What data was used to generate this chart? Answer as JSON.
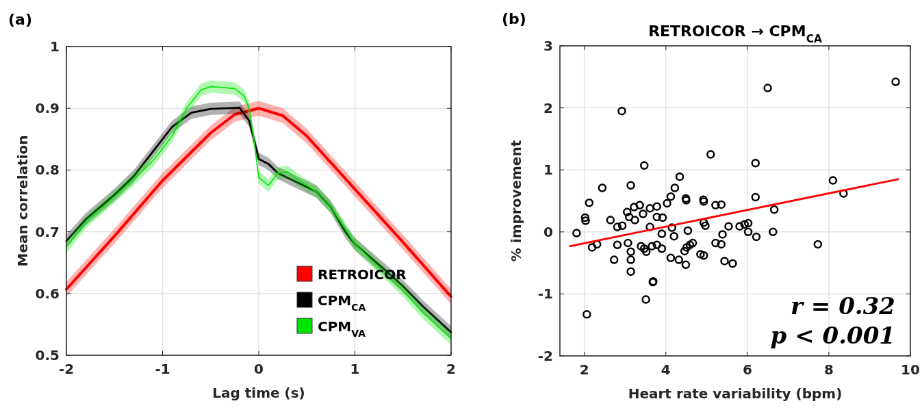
{
  "chart_data": [
    {
      "type": "line",
      "xlabel": "Lag time (s)",
      "ylabel": "Mean correlation",
      "annotations": [
        "(a)"
      ],
      "xlim": [
        -2,
        2
      ],
      "ylim": [
        0.5,
        1
      ],
      "xticks": [
        -2,
        -1,
        0,
        1,
        2
      ],
      "yticks": [
        0.5,
        0.6,
        0.7,
        0.8,
        0.9,
        1
      ],
      "grid": true,
      "legend": "bottom right",
      "line_style": "solid",
      "series": [
        {
          "name": "RETROICOR",
          "color": "#ff0000",
          "x": [
            -2,
            -1.5,
            -1,
            -0.5,
            -0.25,
            0,
            0.25,
            0.5,
            1,
            1.5,
            2
          ],
          "values": [
            0.607,
            0.693,
            0.783,
            0.86,
            0.89,
            0.9,
            0.888,
            0.855,
            0.769,
            0.683,
            0.595
          ],
          "lower": [
            0.595,
            0.681,
            0.771,
            0.848,
            0.878,
            0.888,
            0.876,
            0.843,
            0.757,
            0.671,
            0.583
          ],
          "upper": [
            0.619,
            0.705,
            0.795,
            0.872,
            0.902,
            0.912,
            0.9,
            0.867,
            0.781,
            0.695,
            0.607
          ]
        },
        {
          "name": "CPM$_{CA}$",
          "color": "#000000",
          "x": [
            -2,
            -1.8,
            -1.5,
            -1.3,
            -1.1,
            -0.9,
            -0.7,
            -0.5,
            -0.2,
            -0.1,
            -0.05,
            0,
            0.1,
            0.2,
            0.4,
            0.6,
            0.75,
            0.9,
            1,
            1.3,
            1.5,
            1.7,
            2
          ],
          "values": [
            0.685,
            0.72,
            0.76,
            0.79,
            0.83,
            0.87,
            0.893,
            0.899,
            0.901,
            0.88,
            0.85,
            0.818,
            0.81,
            0.795,
            0.78,
            0.765,
            0.74,
            0.7,
            0.68,
            0.64,
            0.612,
            0.58,
            0.537
          ],
          "lower": [
            0.675,
            0.71,
            0.75,
            0.78,
            0.82,
            0.86,
            0.883,
            0.889,
            0.891,
            0.87,
            0.84,
            0.808,
            0.8,
            0.785,
            0.77,
            0.755,
            0.73,
            0.69,
            0.67,
            0.63,
            0.602,
            0.57,
            0.527
          ],
          "upper": [
            0.695,
            0.73,
            0.77,
            0.8,
            0.84,
            0.88,
            0.903,
            0.909,
            0.911,
            0.89,
            0.86,
            0.828,
            0.82,
            0.805,
            0.79,
            0.775,
            0.75,
            0.71,
            0.69,
            0.65,
            0.622,
            0.59,
            0.547
          ]
        },
        {
          "name": "CPM$_{VA}$",
          "color": "#00e600",
          "x": [
            -2,
            -1.8,
            -1.5,
            -1.3,
            -1.1,
            -0.9,
            -0.75,
            -0.6,
            -0.5,
            -0.4,
            -0.25,
            -0.15,
            -0.1,
            -0.05,
            0,
            0.1,
            0.2,
            0.3,
            0.4,
            0.6,
            0.75,
            0.9,
            1,
            1.3,
            1.5,
            1.7,
            2
          ],
          "values": [
            0.675,
            0.715,
            0.757,
            0.785,
            0.815,
            0.855,
            0.9,
            0.93,
            0.935,
            0.934,
            0.932,
            0.92,
            0.9,
            0.85,
            0.788,
            0.775,
            0.795,
            0.797,
            0.785,
            0.765,
            0.74,
            0.705,
            0.68,
            0.635,
            0.605,
            0.57,
            0.527
          ],
          "lower": [
            0.665,
            0.705,
            0.747,
            0.775,
            0.805,
            0.845,
            0.89,
            0.92,
            0.925,
            0.924,
            0.922,
            0.91,
            0.89,
            0.84,
            0.778,
            0.765,
            0.785,
            0.787,
            0.775,
            0.755,
            0.73,
            0.695,
            0.67,
            0.625,
            0.595,
            0.56,
            0.517
          ],
          "upper": [
            0.685,
            0.725,
            0.767,
            0.795,
            0.825,
            0.865,
            0.91,
            0.94,
            0.945,
            0.944,
            0.942,
            0.93,
            0.91,
            0.86,
            0.798,
            0.785,
            0.805,
            0.807,
            0.795,
            0.775,
            0.75,
            0.715,
            0.69,
            0.645,
            0.615,
            0.58,
            0.537
          ]
        }
      ]
    },
    {
      "type": "scatter",
      "title": "RETROICOR → CPM$_{CA}$",
      "xlabel": "Heart rate variability (bpm)",
      "ylabel": "% improvement",
      "annotations": [
        "(b)",
        "r = 0.32",
        "p < 0.001"
      ],
      "xlim": [
        1.4,
        10
      ],
      "ylim": [
        -2,
        3
      ],
      "xticks": [
        2,
        4,
        6,
        8,
        10
      ],
      "yticks": [
        -2,
        -1,
        0,
        1,
        2,
        3
      ],
      "grid": true,
      "legend": false,
      "series": [
        {
          "marker": "circle",
          "color": "#000000",
          "x": [
            1.81,
            2.02,
            2.03,
            2.12,
            2.44,
            2.19,
            2.31,
            2.64,
            2.73,
            2.81,
            2.93,
            2.81,
            3.14,
            3.05,
            3.1,
            3.07,
            3.14,
            3.14,
            3.14,
            3.22,
            3.36,
            3.24,
            3.44,
            3.39,
            3.47,
            3.52,
            3.61,
            3.78,
            3.69,
            3.66,
            3.78,
            3.9,
            3.9,
            3.61,
            3.78,
            3.92,
            4.03,
            4.12,
            4.22,
            4.34,
            4.15,
            4.2,
            4.12,
            4.32,
            4.49,
            4.49,
            4.5,
            4.54,
            4.51,
            4.59,
            4.66,
            4.46,
            4.85,
            4.93,
            4.92,
            4.93,
            4.93,
            4.97,
            5.22,
            5.36,
            5.22,
            5.36,
            5.39,
            5.44,
            5.64,
            5.54,
            5.81,
            5.93,
            6.02,
            6.02,
            6.22,
            6.2,
            6.2,
            6.5,
            9.64,
            2.92,
            5.1,
            3.47,
            8.1,
            8.36,
            6.66,
            6.63,
            7.73,
            2.06,
            3.51,
            3.68
          ],
          "values": [
            -0.02,
            0.23,
            0.18,
            0.47,
            0.71,
            -0.25,
            -0.2,
            0.19,
            -0.45,
            0.08,
            0.1,
            -0.21,
            0.75,
            0.32,
            0.24,
            -0.18,
            -0.32,
            -0.45,
            -0.64,
            0.4,
            0.43,
            0.19,
            0.29,
            -0.23,
            -0.27,
            -0.32,
            0.38,
            0.41,
            -0.8,
            -0.23,
            -0.21,
            -0.27,
            -0.03,
            0.08,
            0.24,
            0.23,
            0.46,
            0.57,
            0.71,
            0.89,
            0.07,
            -0.07,
            -0.42,
            -0.45,
            -0.53,
            0.54,
            0.51,
            0.02,
            -0.25,
            -0.21,
            -0.18,
            -0.31,
            -0.36,
            -0.38,
            0.52,
            0.49,
            0.15,
            0.1,
            0.43,
            0.44,
            -0.18,
            -0.2,
            -0.04,
            -0.47,
            -0.51,
            0.09,
            0.09,
            0.12,
            0.14,
            0.0,
            -0.08,
            0.56,
            1.11,
            2.32,
            2.42,
            1.95,
            1.25,
            1.07,
            0.83,
            0.62,
            0.36,
            0.0,
            -0.2,
            -1.33,
            -1.09,
            -0.81
          ]
        },
        {
          "type": "line",
          "color": "#ff0000",
          "x": [
            1.65,
            9.7
          ],
          "values": [
            -0.23,
            0.85
          ]
        }
      ]
    }
  ]
}
